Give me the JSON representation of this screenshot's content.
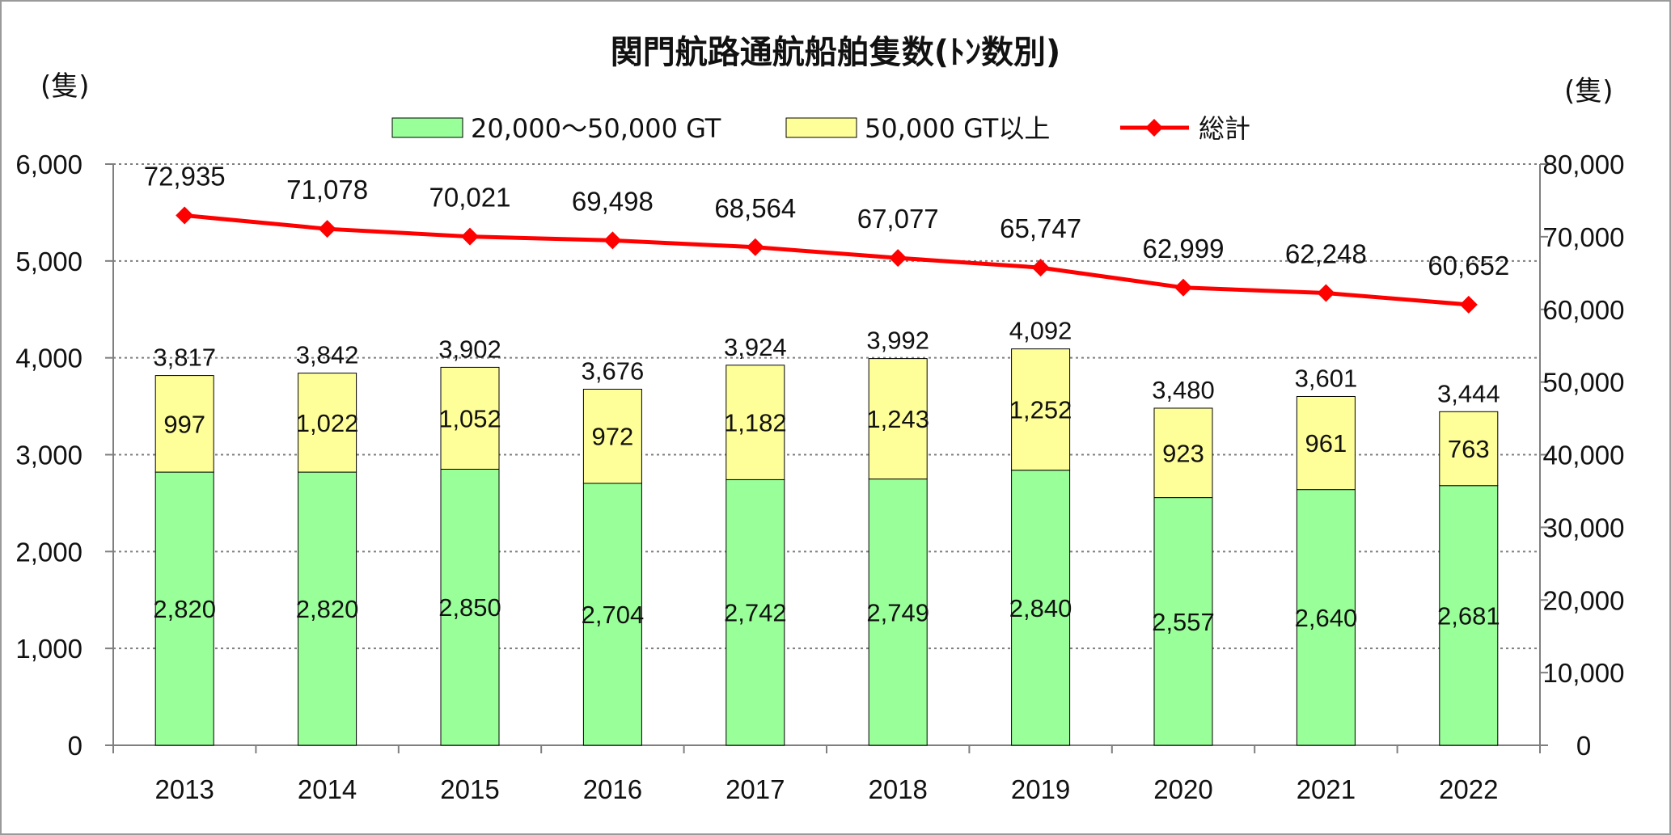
{
  "chart_data": {
    "type": "bar",
    "stacked": true,
    "title": "関門航路通航船舶隻数(ﾄﾝ数別)",
    "left_axis_unit": "(隻)",
    "right_axis_unit": "(隻)",
    "categories": [
      "2013",
      "2014",
      "2015",
      "2016",
      "2017",
      "2018",
      "2019",
      "2020",
      "2021",
      "2022"
    ],
    "series": [
      {
        "name": "20,000～50,000 GT",
        "type": "bar",
        "axis": "left",
        "color": "#99FF99",
        "values": [
          2820,
          2820,
          2850,
          2704,
          2742,
          2749,
          2840,
          2557,
          2640,
          2681
        ],
        "labels": [
          "2,820",
          "2,820",
          "2,850",
          "2,704",
          "2,742",
          "2,749",
          "2,840",
          "2,557",
          "2,640",
          "2,681"
        ]
      },
      {
        "name": "50,000 GT以上",
        "type": "bar",
        "axis": "left",
        "color": "#FFFF99",
        "values": [
          997,
          1022,
          1052,
          972,
          1182,
          1243,
          1252,
          923,
          961,
          763
        ],
        "labels": [
          "997",
          "1,022",
          "1,052",
          "972",
          "1,182",
          "1,243",
          "1,252",
          "923",
          "961",
          "763"
        ]
      },
      {
        "name": "総計",
        "type": "line",
        "axis": "right",
        "color": "#FF0000",
        "values": [
          72935,
          71078,
          70021,
          69498,
          68564,
          67077,
          65747,
          62999,
          62248,
          60652
        ],
        "labels": [
          "72,935",
          "71,078",
          "70,021",
          "69,498",
          "68,564",
          "67,077",
          "65,747",
          "62,999",
          "62,248",
          "60,652"
        ]
      }
    ],
    "bar_totals": [
      3817,
      3842,
      3902,
      3676,
      3924,
      3992,
      4092,
      3480,
      3601,
      3444
    ],
    "bar_total_labels": [
      "3,817",
      "3,842",
      "3,902",
      "3,676",
      "3,924",
      "3,992",
      "4,092",
      "3,480",
      "3,601",
      "3,444"
    ],
    "y_left": {
      "min": 0,
      "max": 6000,
      "ticks": [
        0,
        1000,
        2000,
        3000,
        4000,
        5000,
        6000
      ],
      "tick_labels": [
        "0",
        "1,000",
        "2,000",
        "3,000",
        "4,000",
        "5,000",
        "6,000"
      ]
    },
    "y_right": {
      "min": 0,
      "max": 80000,
      "ticks": [
        0,
        10000,
        20000,
        30000,
        40000,
        50000,
        60000,
        70000,
        80000
      ],
      "tick_labels": [
        "0",
        "10,000",
        "20,000",
        "30,000",
        "40,000",
        "50,000",
        "60,000",
        "70,000",
        "80,000"
      ]
    },
    "grid": "horizontal-dotted",
    "legend_position": "top-center"
  }
}
